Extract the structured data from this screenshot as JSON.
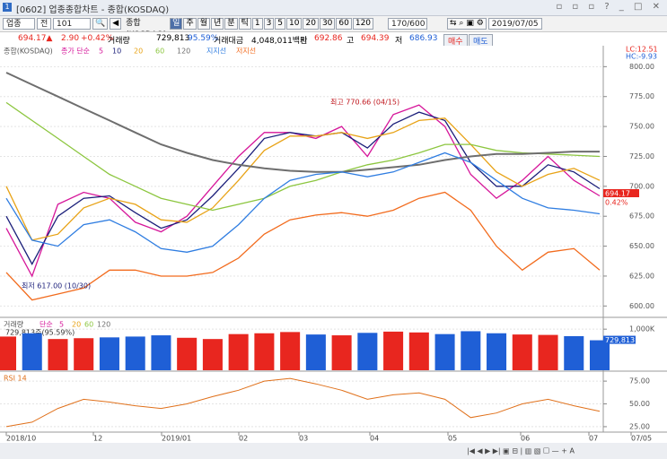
{
  "window": {
    "title": "[0602] 업종종합차트 - 종합(KOSDAQ)"
  },
  "toolbar": {
    "market": "업종",
    "mode": "전",
    "code": "101",
    "name": "종합(KOSDAQ)",
    "periods": [
      "일",
      "주",
      "월",
      "년",
      "분",
      "틱",
      "1",
      "3",
      "5",
      "10",
      "20",
      "30",
      "60",
      "120"
    ],
    "count": "170/600",
    "date": "2019/07/05"
  },
  "quote": {
    "price": "694.17▲",
    "change": "2.90",
    "rate": "+0.42%",
    "volume_label": "거래량",
    "volume": "729,813",
    "volume_rate": "95.59%",
    "amount_label": "거래대금",
    "amount": "4,048,011백만",
    "open_label": "시",
    "open": "692.86",
    "high_label": "고",
    "high": "694.39",
    "low_label": "저",
    "low": "686.93",
    "buy": "매수",
    "sell": "매도"
  },
  "x_axis": [
    "2018/10",
    "12",
    "2019/01",
    "02",
    "03",
    "04",
    "05",
    "06",
    "07",
    "07/05"
  ],
  "chart_data": [
    {
      "type": "line",
      "title": "종합(KOSDAQ)",
      "legend_prefix": "종가 단순",
      "ylim": [
        592,
        816
      ],
      "yticks": [
        {
          "value": 600,
          "label": "600.00"
        },
        {
          "value": 625,
          "label": "625.00"
        },
        {
          "value": 650,
          "label": "650.00"
        },
        {
          "value": 675,
          "label": "675.00"
        },
        {
          "value": 700,
          "label": "700.00"
        },
        {
          "value": 725,
          "label": "725.00"
        },
        {
          "value": 750,
          "label": "750.00"
        },
        {
          "value": 775,
          "label": "775.00"
        },
        {
          "value": 800,
          "label": "800.00"
        }
      ],
      "series": [
        {
          "name": "5",
          "color": "#d6169a",
          "values": [
            665,
            625,
            685,
            695,
            690,
            670,
            662,
            675,
            700,
            725,
            745,
            745,
            740,
            750,
            725,
            760,
            768,
            750,
            710,
            690,
            705,
            725,
            705,
            692
          ]
        },
        {
          "name": "10",
          "color": "#1b1f7a",
          "values": [
            675,
            635,
            675,
            690,
            692,
            678,
            665,
            672,
            692,
            715,
            740,
            745,
            742,
            745,
            732,
            752,
            762,
            755,
            720,
            700,
            700,
            718,
            712,
            698
          ]
        },
        {
          "name": "20",
          "color": "#e8a317",
          "values": [
            700,
            655,
            660,
            682,
            690,
            685,
            672,
            670,
            682,
            705,
            730,
            742,
            742,
            745,
            740,
            745,
            755,
            757,
            735,
            712,
            700,
            710,
            715,
            705
          ]
        },
        {
          "name": "60",
          "color": "#8cc63f",
          "values": [
            770,
            755,
            740,
            725,
            710,
            700,
            690,
            685,
            680,
            685,
            690,
            700,
            705,
            712,
            718,
            722,
            728,
            735,
            735,
            730,
            728,
            727,
            726,
            725
          ]
        },
        {
          "name": "120",
          "color": "#6e6e6e",
          "values": [
            795,
            785,
            775,
            765,
            755,
            745,
            735,
            728,
            722,
            718,
            715,
            713,
            712,
            712,
            714,
            716,
            718,
            722,
            725,
            727,
            727,
            728,
            729,
            729
          ]
        },
        {
          "name": "지지선",
          "color": "#2f7de1",
          "values": [
            690,
            655,
            650,
            668,
            672,
            662,
            648,
            645,
            650,
            668,
            690,
            705,
            710,
            712,
            708,
            712,
            720,
            728,
            720,
            705,
            690,
            682,
            680,
            677
          ]
        },
        {
          "name": "저지선",
          "color": "#f26b1d",
          "values": [
            628,
            605,
            610,
            615,
            630,
            630,
            625,
            625,
            628,
            640,
            660,
            672,
            676,
            678,
            675,
            680,
            690,
            695,
            680,
            650,
            630,
            645,
            648,
            630
          ]
        }
      ],
      "annotations": [
        "최고 770.66 (04/15)",
        "최저 617.00 (10/30)"
      ],
      "lc": "LC:12.51",
      "hc": "HC:-9.93",
      "last_price": "694.17",
      "last_rate": "0.42%"
    },
    {
      "type": "bar",
      "title": "거래량",
      "legend": [
        "단순",
        "5",
        "20",
        "60",
        "120"
      ],
      "subtitle": "729,813주(95.59%)",
      "up_color": "#e8261f",
      "down_color": "#1f5fd6",
      "ylim": [
        0,
        1200000
      ],
      "yticks": [
        {
          "value": 1000000,
          "label": "1,000K"
        }
      ],
      "last_label": "729,813",
      "values": [
        820000,
        900000,
        760000,
        780000,
        800000,
        820000,
        850000,
        790000,
        760000,
        880000,
        900000,
        930000,
        870000,
        850000,
        910000,
        940000,
        920000,
        880000,
        950000,
        900000,
        870000,
        860000,
        830000,
        729813
      ]
    },
    {
      "type": "line",
      "title": "RSI 14",
      "color": "#e0701a",
      "ylim": [
        21,
        82
      ],
      "yticks": [
        {
          "value": 25,
          "label": "25.00"
        },
        {
          "value": 50,
          "label": "50.00"
        },
        {
          "value": 75,
          "label": "75.00"
        }
      ],
      "values": [
        25,
        30,
        45,
        55,
        52,
        48,
        45,
        50,
        58,
        65,
        75,
        78,
        72,
        65,
        55,
        60,
        62,
        55,
        35,
        40,
        50,
        55,
        48,
        42
      ]
    }
  ]
}
